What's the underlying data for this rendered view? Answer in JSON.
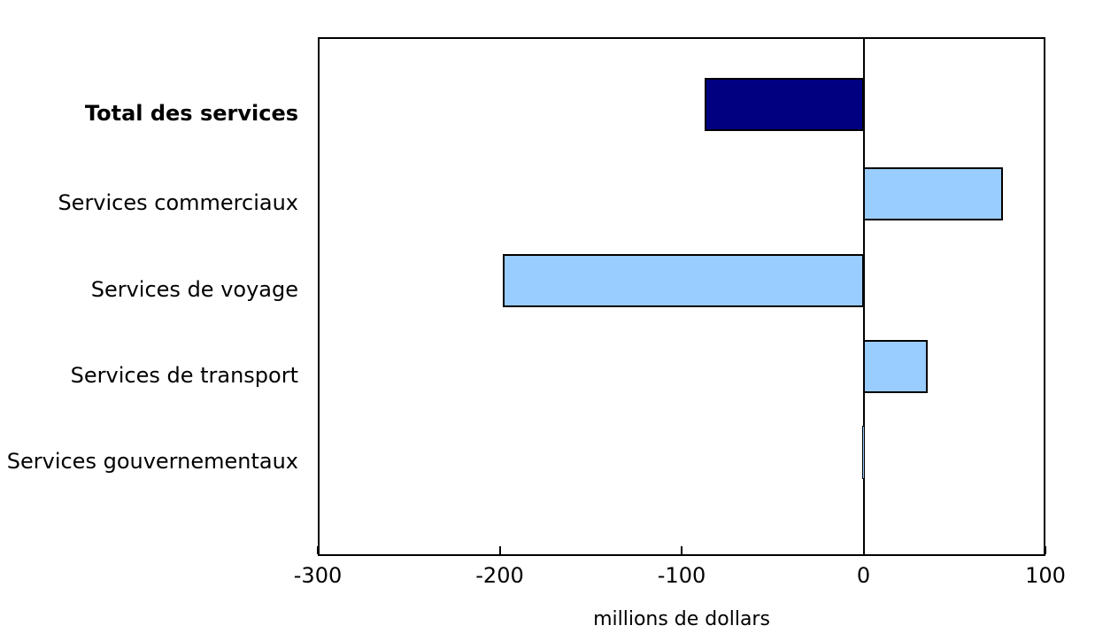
{
  "chart_data": {
    "type": "bar",
    "orientation": "horizontal",
    "categories": [
      "Total des services",
      "Services commerciaux",
      "Services de voyage",
      "Services de transport",
      "Services gouvernementaux"
    ],
    "values": [
      -87,
      76,
      -198,
      35,
      0
    ],
    "bar_colors": [
      "#000080",
      "#99CCFF",
      "#99CCFF",
      "#99CCFF",
      "#99CCFF"
    ],
    "bar_border_color": "#000000",
    "bold_category_index": 0,
    "xlabel": "millions de dollars",
    "xlim": [
      -300,
      100
    ],
    "xticks": [
      -300,
      -200,
      -100,
      0,
      100
    ],
    "xtick_labels": [
      "-300",
      "-200",
      "-100",
      "0",
      "100"
    ],
    "axis_color": "#000000",
    "background_color": "#FFFFFF",
    "grid": false,
    "legend": null
  }
}
